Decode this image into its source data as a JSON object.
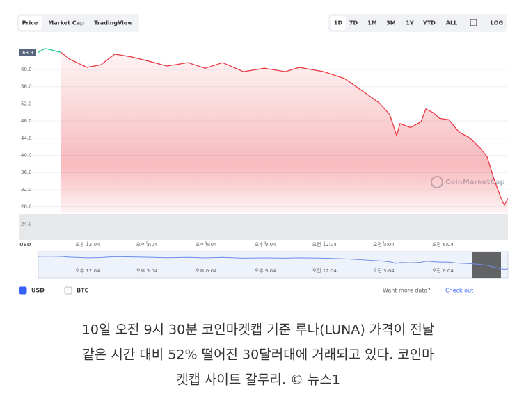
{
  "chart_data": {
    "type": "line",
    "tabs": [
      "Price",
      "Market Cap",
      "TradingView"
    ],
    "ranges": [
      "1D",
      "7D",
      "1M",
      "3M",
      "1Y",
      "YTD",
      "ALL",
      "LOG"
    ],
    "price_label": "63.9",
    "currency_label": "USD",
    "x": [
      0,
      0.35,
      1.16,
      1.59,
      2.47,
      3.17,
      3.88,
      4.76,
      5.64,
      6.52,
      7.58,
      8.46,
      9.34,
      10.4,
      11.46,
      12.52,
      13.22,
      14.46,
      15.52,
      16.4,
      17.28,
      17.81,
      18.16,
      18.33,
      18.86,
      19.39,
      19.64,
      19.99,
      20.34,
      20.8,
      21.33,
      21.86,
      22.39,
      22.74,
      23.1,
      23.45,
      23.62,
      23.8
    ],
    "series": [
      {
        "name": "USD",
        "color": "#ea3943",
        "up_color": "#16c784",
        "up_until": 2,
        "values": [
          64.0,
          64.9,
          64.0,
          62.4,
          60.5,
          61.1,
          63.6,
          62.9,
          61.9,
          60.8,
          61.6,
          60.3,
          61.6,
          59.5,
          60.3,
          59.5,
          60.5,
          59.5,
          57.9,
          55.1,
          52.2,
          49.5,
          44.6,
          47.4,
          46.5,
          47.8,
          50.8,
          50.0,
          48.6,
          48.3,
          45.4,
          44.1,
          41.7,
          39.7,
          34.4,
          30.0,
          28.4,
          30.0
        ]
      }
    ],
    "legend": [
      {
        "name": "USD",
        "color": "#3861fb",
        "checked": true
      },
      {
        "name": "BTC",
        "color": "#ffffff",
        "checked": false
      }
    ],
    "xlim": [
      0,
      23.8
    ],
    "xticks": [
      {
        "value": 2.5,
        "label": "오후 12:04"
      },
      {
        "value": 5.5,
        "label": "오후 3:04"
      },
      {
        "value": 8.5,
        "label": "오후 6:04"
      },
      {
        "value": 11.5,
        "label": "오후 9:04"
      },
      {
        "value": 14.5,
        "label": "오전 12:04"
      },
      {
        "value": 17.5,
        "label": "오전 3:04"
      },
      {
        "value": 20.5,
        "label": "오전 6:04"
      }
    ],
    "ylim": [
      20,
      66
    ],
    "yticks": [
      {
        "value": 24,
        "label": "24.0"
      },
      {
        "value": 28,
        "label": "28.0"
      },
      {
        "value": 32,
        "label": "32.0"
      },
      {
        "value": 36,
        "label": "36.0"
      },
      {
        "value": 40,
        "label": "40.0"
      },
      {
        "value": 44,
        "label": "44.0"
      },
      {
        "value": 48,
        "label": "48.0"
      },
      {
        "value": 52,
        "label": "52.0"
      },
      {
        "value": 56,
        "label": "56.0"
      },
      {
        "value": 60,
        "label": "60.0"
      }
    ],
    "grid": true,
    "watermark": "CoinMarketCap",
    "more_data": "Want more data?",
    "check_out": "Check out",
    "caption": [
      "10일 오전 9시 30분 코인마켓캡 기준 루나(LUNA) 가격이 전날",
      "같은 시간 대비 52% 떨어진 30달러대에 거래되고 있다. 코인마",
      "켓캡 사이트 갈무리. © 뉴스1"
    ]
  }
}
